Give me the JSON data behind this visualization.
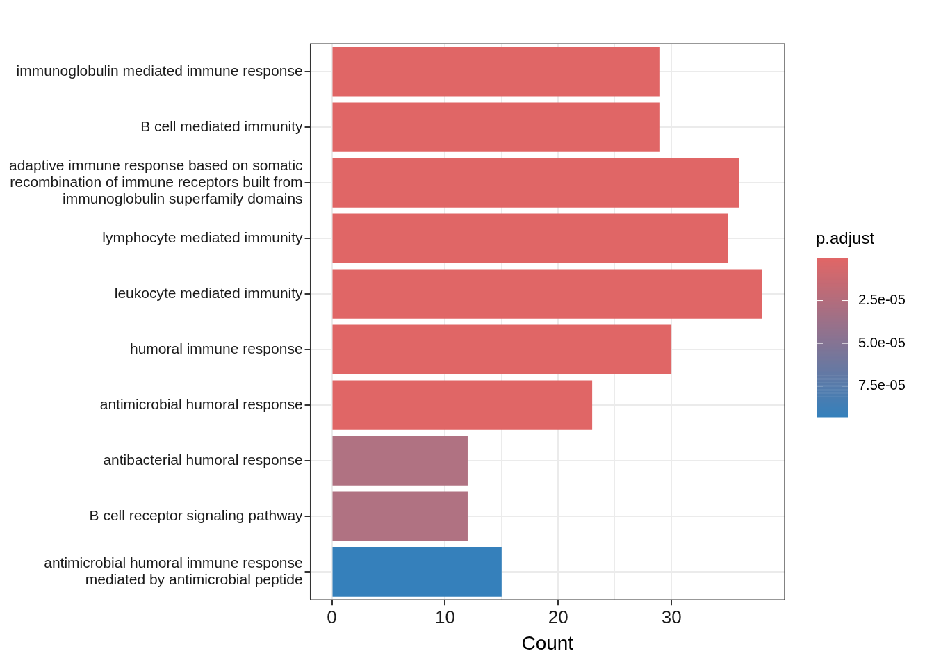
{
  "chart_data": {
    "type": "bar",
    "orientation": "horizontal",
    "xlabel": "Count",
    "clabel": "p.adjust",
    "categories": [
      "immunoglobulin mediated immune response",
      "B cell mediated immunity",
      "adaptive immune response based on somatic recombination of immune receptors built from immunoglobulin superfamily domains",
      "lymphocyte mediated immunity",
      "leukocyte mediated immunity",
      "humoral immune response",
      "antimicrobial humoral response",
      "antibacterial humoral response",
      "B cell receptor signaling pathway",
      "antimicrobial humoral immune response mediated by antimicrobial peptide"
    ],
    "values": [
      29,
      29,
      36,
      35,
      38,
      30,
      23,
      12,
      12,
      15
    ],
    "colors": [
      "#e06666",
      "#e06666",
      "#e06666",
      "#e06666",
      "#e06666",
      "#e06666",
      "#e06666",
      "#b07282",
      "#b07282",
      "#3580bb"
    ],
    "xlim": [
      -1.9,
      40
    ],
    "xticks": [
      0,
      {
        "value": 5,
        "label": null
      },
      10,
      {
        "value": 15,
        "label": null
      },
      20,
      {
        "value": 25,
        "label": null
      },
      30,
      {
        "value": 35,
        "label": null
      }
    ],
    "grid": true,
    "clim": [
      0,
      9.3e-05
    ],
    "cticks": [
      {
        "value": 2.5e-05,
        "label": "2.5e-05"
      },
      {
        "value": 5e-05,
        "label": "5.0e-05"
      },
      {
        "value": 7.5e-05,
        "label": "7.5e-05"
      }
    ]
  }
}
